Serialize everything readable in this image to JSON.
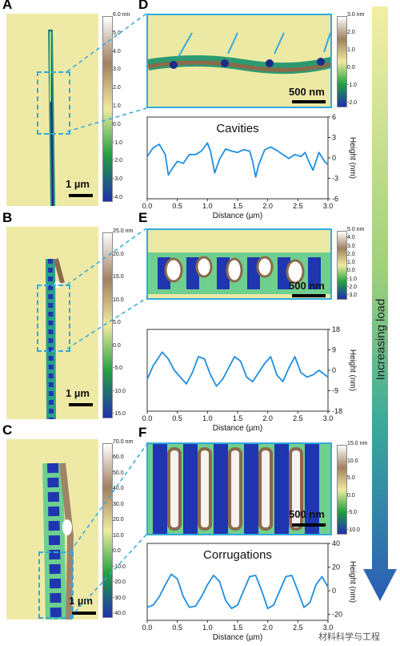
{
  "panels": {
    "A": {
      "label": "A",
      "scale_bar": "1 µm",
      "colorbar_ticks": [
        "6.0 nm",
        "5.0",
        "4.0",
        "3.0",
        "2.0",
        "1.0",
        "0.0",
        "-1.0",
        "-2.0",
        "-3.0",
        "-4.0"
      ]
    },
    "B": {
      "label": "B",
      "scale_bar": "1 µm",
      "colorbar_ticks": [
        "25.0 nm",
        "20.0",
        "15.0",
        "10.0",
        "5.0",
        "0.0",
        "-5.0",
        "-10.0",
        "-15.0"
      ]
    },
    "C": {
      "label": "C",
      "scale_bar": "1 µm",
      "colorbar_ticks": [
        "70.0 nm",
        "60.0",
        "50.0",
        "40.0",
        "30.0",
        "20.0",
        "10.0",
        "0.0",
        "-10.0",
        "-20.0",
        "-30.0",
        "-40.0"
      ]
    },
    "D": {
      "label": "D",
      "scale_bar": "500 nm",
      "colorbar_ticks": [
        "3.0 nm",
        "2.0",
        "1.0",
        "0.0",
        "-1.0",
        "-2.0"
      ]
    },
    "E": {
      "label": "E",
      "scale_bar": "500 nm",
      "colorbar_ticks": [
        "5.0 nm",
        "4.0",
        "3.0",
        "2.0",
        "1.0",
        "0.0",
        "-1.0",
        "-2.0",
        "-3.0"
      ]
    },
    "F": {
      "label": "F",
      "scale_bar": "500 nm",
      "colorbar_ticks": [
        "15.0 nm",
        "10.0",
        "5.0",
        "0.0",
        "-5.0",
        "-10.0"
      ]
    }
  },
  "profiles": {
    "D": {
      "title": "Cavities",
      "yticks": [
        "6",
        "3",
        "0",
        "-3",
        "-6"
      ]
    },
    "E": {
      "title": "",
      "yticks": [
        "18",
        "9",
        "0",
        "-9",
        "-18"
      ]
    },
    "F": {
      "title": "Corrugations",
      "yticks": [
        "40",
        "20",
        "0",
        "-20"
      ]
    }
  },
  "xaxis": {
    "label": "Distance (µm)",
    "ticks": [
      "0.0",
      "0.5",
      "1.0",
      "1.5",
      "2.0",
      "2.5",
      "3.0"
    ]
  },
  "yaxis_label": "Height (nm)",
  "gradient_arrow_label": "Increasing load",
  "watermark": "材料科学与工程",
  "chart_data": [
    {
      "type": "line",
      "title": "Cavities",
      "xlabel": "Distance (µm)",
      "ylabel": "Height (nm)",
      "xlim": [
        0,
        3
      ],
      "ylim": [
        -6,
        6
      ],
      "x": [
        0,
        0.1,
        0.2,
        0.3,
        0.35,
        0.42,
        0.5,
        0.6,
        0.7,
        0.8,
        0.9,
        1.0,
        1.05,
        1.12,
        1.2,
        1.3,
        1.4,
        1.5,
        1.6,
        1.7,
        1.75,
        1.8,
        1.85,
        1.95,
        2.05,
        2.15,
        2.25,
        2.35,
        2.45,
        2.55,
        2.62,
        2.68,
        2.75,
        2.85,
        2.95,
        3.0
      ],
      "y": [
        0.2,
        1.5,
        2.0,
        0.5,
        -2.5,
        -1.5,
        -0.5,
        -0.8,
        0.5,
        0.5,
        1.0,
        2.2,
        1.0,
        -2.2,
        -0.2,
        1.3,
        1.0,
        0.8,
        1.2,
        1.0,
        -0.5,
        -2.8,
        -1.0,
        1.2,
        1.6,
        1.1,
        0.5,
        -0.1,
        0.5,
        0.2,
        0.8,
        -0.5,
        -1.8,
        0.8,
        -0.6,
        -1.0
      ]
    },
    {
      "type": "line",
      "title": "",
      "xlabel": "Distance (µm)",
      "ylabel": "Height (nm)",
      "xlim": [
        0,
        3
      ],
      "ylim": [
        -18,
        18
      ],
      "x": [
        0,
        0.1,
        0.25,
        0.35,
        0.45,
        0.55,
        0.65,
        0.75,
        0.85,
        0.95,
        1.05,
        1.15,
        1.25,
        1.35,
        1.45,
        1.55,
        1.65,
        1.75,
        1.85,
        1.95,
        2.05,
        2.15,
        2.25,
        2.35,
        2.45,
        2.55,
        2.65,
        2.75,
        2.85,
        2.95,
        3.0
      ],
      "y": [
        -4,
        2,
        8,
        5,
        0,
        -3,
        -6,
        -1,
        6,
        5,
        -2,
        -7,
        -4,
        1,
        6,
        4,
        -3,
        -5,
        -1,
        3,
        6,
        -2,
        -5,
        1,
        6,
        -1,
        -3,
        -2,
        0,
        -2,
        -3
      ]
    },
    {
      "type": "line",
      "title": "Corrugations",
      "xlabel": "Distance (µm)",
      "ylabel": "Height (nm)",
      "xlim": [
        0,
        3
      ],
      "ylim": [
        -25,
        40
      ],
      "x": [
        0,
        0.1,
        0.2,
        0.3,
        0.4,
        0.5,
        0.6,
        0.7,
        0.8,
        0.9,
        1.0,
        1.1,
        1.2,
        1.3,
        1.4,
        1.5,
        1.6,
        1.7,
        1.8,
        1.9,
        2.0,
        2.1,
        2.2,
        2.3,
        2.4,
        2.5,
        2.6,
        2.7,
        2.8,
        2.9,
        3.0
      ],
      "y": [
        -14,
        -12,
        -5,
        5,
        14,
        10,
        -5,
        -14,
        -13,
        -5,
        5,
        13,
        8,
        -8,
        -15,
        -12,
        0,
        12,
        13,
        0,
        -15,
        -12,
        0,
        12,
        13,
        0,
        -14,
        -10,
        5,
        12,
        3
      ]
    }
  ]
}
